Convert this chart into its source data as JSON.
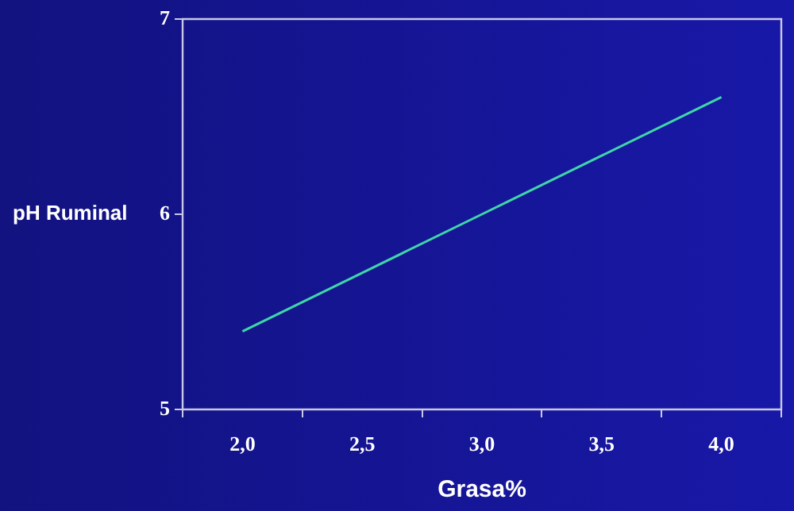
{
  "chart_data": {
    "type": "line",
    "xlabel": "Grasa%",
    "ylabel": "pH Ruminal",
    "categories": [
      "2,0",
      "2,5",
      "3,0",
      "3,5",
      "4,0"
    ],
    "series": [
      {
        "color": "#3fd6a8",
        "values": [
          5.4,
          5.7,
          6.0,
          6.3,
          6.6
        ]
      }
    ],
    "ylim": [
      5,
      7
    ],
    "yticks": [
      5,
      6,
      7
    ],
    "grid": false,
    "legend": false,
    "marker": "none",
    "line_style": "solid"
  }
}
